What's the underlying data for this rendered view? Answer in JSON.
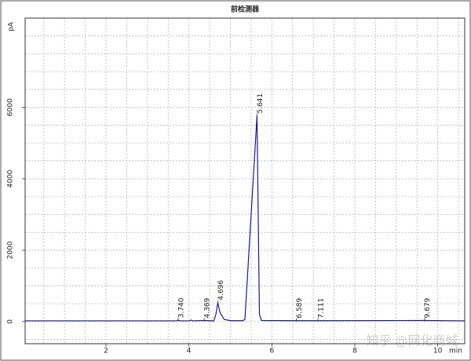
{
  "chart_data": {
    "type": "line",
    "title": "前检测器",
    "ylabel": "pA",
    "xlabel": "min",
    "x": [
      0.05,
      3.7,
      3.74,
      3.8,
      4.0,
      4.05,
      4.1,
      4.369,
      4.6,
      4.65,
      4.696,
      4.75,
      4.85,
      5.0,
      5.3,
      5.35,
      5.641,
      5.7,
      5.75,
      6.589,
      7.111,
      9.679,
      10.65
    ],
    "values": [
      20,
      20,
      35,
      20,
      20,
      40,
      20,
      30,
      20,
      200,
      530,
      250,
      60,
      25,
      25,
      60,
      5760,
      200,
      30,
      25,
      25,
      30,
      20
    ],
    "color": "#1a1a8c",
    "annotations": [
      {
        "value": 3.74,
        "label": "3.740"
      },
      {
        "value": 4.369,
        "label": "4.369"
      },
      {
        "value": 4.696,
        "label": "4.696"
      },
      {
        "value": 5.641,
        "label": "5.641"
      },
      {
        "value": 6.589,
        "label": "6.589"
      },
      {
        "value": 7.111,
        "label": "7.111"
      },
      {
        "value": 9.679,
        "label": "9.679"
      }
    ],
    "xlim": [
      0.05,
      10.65
    ],
    "xticks": [
      2,
      4,
      6,
      8,
      10
    ],
    "ylim": [
      -620,
      8500
    ],
    "yticks": [
      0,
      2000,
      4000,
      6000
    ],
    "grid": true,
    "minor_grid": 4,
    "watermark": "知乎 @网化商城"
  }
}
